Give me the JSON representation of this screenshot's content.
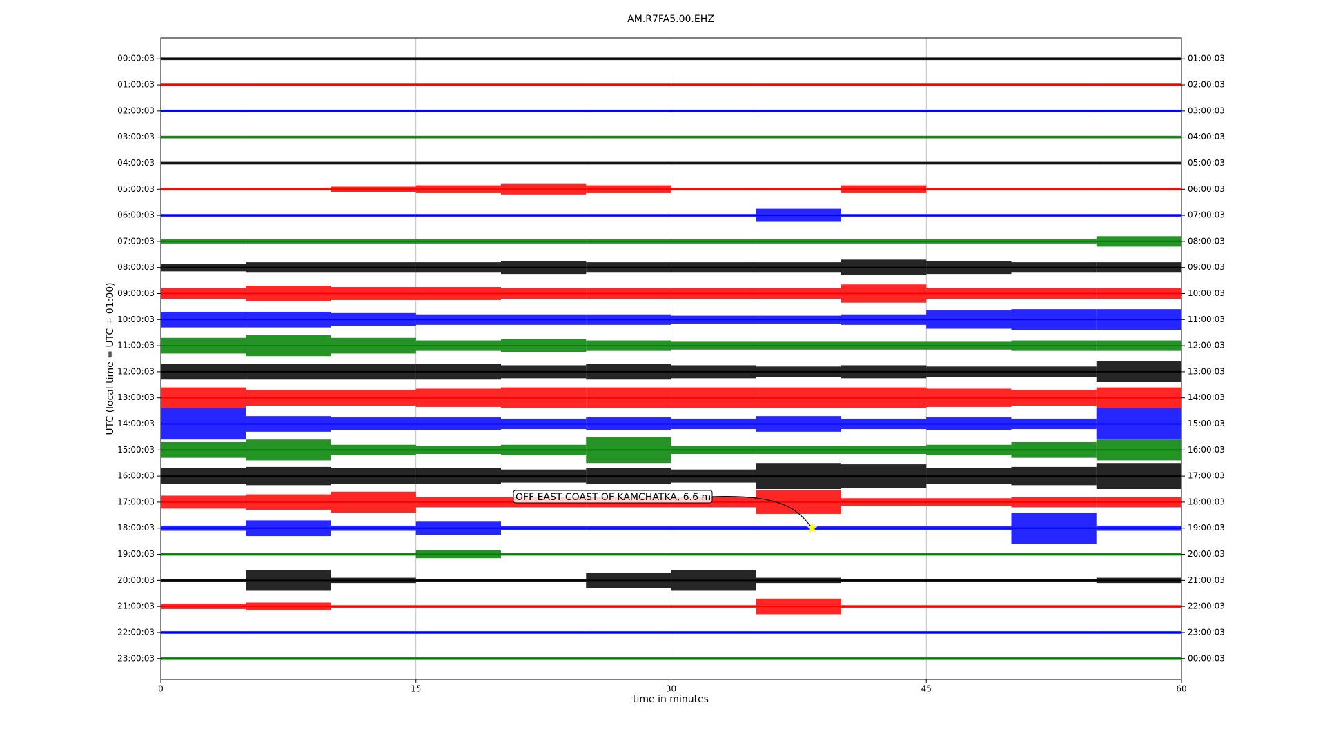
{
  "chart_data": {
    "type": "helicorder",
    "title": "AM.R7FA5.00.EHZ",
    "x_label": "time in minutes",
    "y_label": "UTC (local time = UTC + 01:00)",
    "xlim": [
      0,
      60
    ],
    "xticks": [
      0,
      15,
      30,
      45,
      60
    ],
    "grid": true,
    "bin_width": 5,
    "x": [
      2.5,
      7.5,
      12.5,
      17.5,
      22.5,
      27.5,
      32.5,
      37.5,
      42.5,
      47.5,
      52.5,
      57.5
    ],
    "series": [
      {
        "name": "00:00:03",
        "end": "01:00:03",
        "color": "#000000",
        "values": [
          0.05,
          0.05,
          0.05,
          0.05,
          0.05,
          0.05,
          0.05,
          0.05,
          0.05,
          0.05,
          0.05,
          0.05
        ]
      },
      {
        "name": "01:00:03",
        "end": "02:00:03",
        "color": "#ff0000",
        "values": [
          0.05,
          0.05,
          0.05,
          0.05,
          0.05,
          0.05,
          0.05,
          0.05,
          0.05,
          0.05,
          0.05,
          0.05
        ]
      },
      {
        "name": "02:00:03",
        "end": "03:00:03",
        "color": "#0000ff",
        "values": [
          0.05,
          0.05,
          0.05,
          0.05,
          0.05,
          0.05,
          0.05,
          0.05,
          0.05,
          0.05,
          0.05,
          0.05
        ]
      },
      {
        "name": "03:00:03",
        "end": "04:00:03",
        "color": "#008000",
        "values": [
          0.05,
          0.05,
          0.05,
          0.05,
          0.05,
          0.05,
          0.05,
          0.05,
          0.05,
          0.05,
          0.05,
          0.05
        ]
      },
      {
        "name": "04:00:03",
        "end": "05:00:03",
        "color": "#000000",
        "values": [
          0.05,
          0.05,
          0.05,
          0.05,
          0.05,
          0.05,
          0.05,
          0.05,
          0.05,
          0.05,
          0.05,
          0.05
        ]
      },
      {
        "name": "05:00:03",
        "end": "06:00:03",
        "color": "#ff0000",
        "values": [
          0.05,
          0.05,
          0.1,
          0.15,
          0.2,
          0.15,
          0.05,
          0.05,
          0.15,
          0.05,
          0.05,
          0.05
        ]
      },
      {
        "name": "06:00:03",
        "end": "07:00:03",
        "color": "#0000ff",
        "values": [
          0.05,
          0.05,
          0.05,
          0.05,
          0.05,
          0.05,
          0.05,
          0.25,
          0.05,
          0.05,
          0.05,
          0.05
        ]
      },
      {
        "name": "07:00:03",
        "end": "08:00:03",
        "color": "#008000",
        "values": [
          0.08,
          0.08,
          0.08,
          0.08,
          0.08,
          0.08,
          0.08,
          0.08,
          0.08,
          0.08,
          0.08,
          0.2
        ]
      },
      {
        "name": "08:00:03",
        "end": "09:00:03",
        "color": "#000000",
        "values": [
          0.15,
          0.2,
          0.2,
          0.2,
          0.25,
          0.2,
          0.2,
          0.2,
          0.3,
          0.25,
          0.2,
          0.2
        ]
      },
      {
        "name": "09:00:03",
        "end": "10:00:03",
        "color": "#ff0000",
        "values": [
          0.2,
          0.3,
          0.25,
          0.25,
          0.2,
          0.2,
          0.2,
          0.2,
          0.35,
          0.2,
          0.2,
          0.2
        ]
      },
      {
        "name": "10:00:03",
        "end": "11:00:03",
        "color": "#0000ff",
        "values": [
          0.3,
          0.3,
          0.25,
          0.2,
          0.2,
          0.2,
          0.15,
          0.15,
          0.2,
          0.35,
          0.4,
          0.4
        ]
      },
      {
        "name": "11:00:03",
        "end": "12:00:03",
        "color": "#008000",
        "values": [
          0.3,
          0.4,
          0.3,
          0.2,
          0.25,
          0.2,
          0.15,
          0.15,
          0.15,
          0.15,
          0.2,
          0.2
        ]
      },
      {
        "name": "12:00:03",
        "end": "13:00:03",
        "color": "#000000",
        "values": [
          0.3,
          0.3,
          0.3,
          0.3,
          0.25,
          0.3,
          0.25,
          0.2,
          0.25,
          0.2,
          0.2,
          0.4
        ]
      },
      {
        "name": "13:00:03",
        "end": "14:00:03",
        "color": "#ff0000",
        "values": [
          0.4,
          0.3,
          0.3,
          0.35,
          0.4,
          0.4,
          0.4,
          0.4,
          0.4,
          0.35,
          0.3,
          0.4
        ]
      },
      {
        "name": "14:00:03",
        "end": "15:00:03",
        "color": "#0000ff",
        "values": [
          0.6,
          0.3,
          0.25,
          0.25,
          0.2,
          0.25,
          0.2,
          0.3,
          0.2,
          0.25,
          0.2,
          0.6
        ]
      },
      {
        "name": "15:00:03",
        "end": "16:00:03",
        "color": "#008000",
        "values": [
          0.3,
          0.4,
          0.2,
          0.15,
          0.2,
          0.5,
          0.15,
          0.15,
          0.15,
          0.2,
          0.3,
          0.4
        ]
      },
      {
        "name": "16:00:03",
        "end": "17:00:03",
        "color": "#000000",
        "values": [
          0.3,
          0.35,
          0.3,
          0.3,
          0.25,
          0.3,
          0.25,
          0.5,
          0.45,
          0.3,
          0.35,
          0.5
        ]
      },
      {
        "name": "17:00:03",
        "end": "18:00:03",
        "color": "#ff0000",
        "values": [
          0.25,
          0.3,
          0.4,
          0.2,
          0.2,
          0.2,
          0.2,
          0.45,
          0.15,
          0.15,
          0.2,
          0.2
        ]
      },
      {
        "name": "18:00:03",
        "end": "19:00:03",
        "color": "#0000ff",
        "values": [
          0.1,
          0.3,
          0.1,
          0.25,
          0.08,
          0.08,
          0.08,
          0.08,
          0.08,
          0.08,
          0.6,
          0.1
        ]
      },
      {
        "name": "19:00:03",
        "end": "20:00:03",
        "color": "#008000",
        "values": [
          0.05,
          0.05,
          0.05,
          0.15,
          0.05,
          0.05,
          0.05,
          0.05,
          0.05,
          0.05,
          0.05,
          0.05
        ]
      },
      {
        "name": "20:00:03",
        "end": "21:00:03",
        "color": "#000000",
        "values": [
          0.05,
          0.4,
          0.1,
          0.05,
          0.05,
          0.3,
          0.4,
          0.1,
          0.05,
          0.05,
          0.05,
          0.1
        ]
      },
      {
        "name": "21:00:03",
        "end": "22:00:03",
        "color": "#ff0000",
        "values": [
          0.1,
          0.15,
          0.05,
          0.05,
          0.05,
          0.05,
          0.05,
          0.3,
          0.05,
          0.05,
          0.05,
          0.05
        ]
      },
      {
        "name": "22:00:03",
        "end": "23:00:03",
        "color": "#0000ff",
        "values": [
          0.05,
          0.05,
          0.05,
          0.05,
          0.05,
          0.05,
          0.05,
          0.05,
          0.05,
          0.05,
          0.05,
          0.05
        ]
      },
      {
        "name": "23:00:03",
        "end": "00:00:03",
        "color": "#008000",
        "values": [
          0.05,
          0.05,
          0.05,
          0.05,
          0.05,
          0.05,
          0.05,
          0.05,
          0.05,
          0.05,
          0.05,
          0.05
        ]
      }
    ],
    "event": {
      "label": "OFF EAST COAST OF KAMCHATKA, 6.6 m",
      "x": 38.3,
      "row": "18:00:03",
      "color": "#ffff00"
    }
  }
}
